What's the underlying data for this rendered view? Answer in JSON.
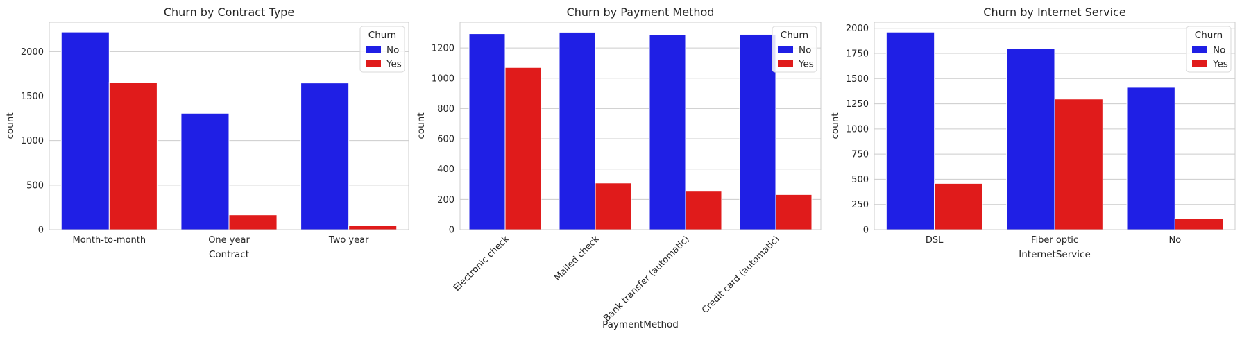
{
  "colors": {
    "No": "#1f1fe5",
    "Yes": "#e01b1b"
  },
  "chart_data": [
    {
      "type": "bar",
      "title": "Churn by Contract Type",
      "xlabel": "Contract",
      "ylabel": "count",
      "categories": [
        "Month-to-month",
        "One year",
        "Two year"
      ],
      "series": [
        {
          "name": "No",
          "values": [
            2220,
            1307,
            1647
          ]
        },
        {
          "name": "Yes",
          "values": [
            1655,
            166,
            48
          ]
        }
      ],
      "ylim": [
        0,
        2330
      ],
      "yticks": [
        0,
        500,
        1000,
        1500,
        2000
      ],
      "xtick_rotation": 0,
      "legend_title": "Churn",
      "legend_position": "top-right",
      "grid": true
    },
    {
      "type": "bar",
      "title": "Churn by Payment Method",
      "xlabel": "PaymentMethod",
      "ylabel": "count",
      "categories": [
        "Electronic check",
        "Mailed check",
        "Bank transfer (automatic)",
        "Credit card (automatic)"
      ],
      "series": [
        {
          "name": "No",
          "values": [
            1294,
            1304,
            1286,
            1290
          ]
        },
        {
          "name": "Yes",
          "values": [
            1071,
            308,
            258,
            232
          ]
        }
      ],
      "ylim": [
        0,
        1370
      ],
      "yticks": [
        0,
        200,
        400,
        600,
        800,
        1000,
        1200
      ],
      "xtick_rotation": -45,
      "legend_title": "Churn",
      "legend_position": "top-right",
      "grid": true
    },
    {
      "type": "bar",
      "title": "Churn by Internet Service",
      "xlabel": "InternetService",
      "ylabel": "count",
      "categories": [
        "DSL",
        "Fiber optic",
        "No"
      ],
      "series": [
        {
          "name": "No",
          "values": [
            1962,
            1799,
            1413
          ]
        },
        {
          "name": "Yes",
          "values": [
            459,
            1297,
            113
          ]
        }
      ],
      "ylim": [
        0,
        2060
      ],
      "yticks": [
        0,
        250,
        500,
        750,
        1000,
        1250,
        1500,
        1750,
        2000
      ],
      "xtick_rotation": 0,
      "legend_title": "Churn",
      "legend_position": "top-right",
      "grid": true
    }
  ]
}
